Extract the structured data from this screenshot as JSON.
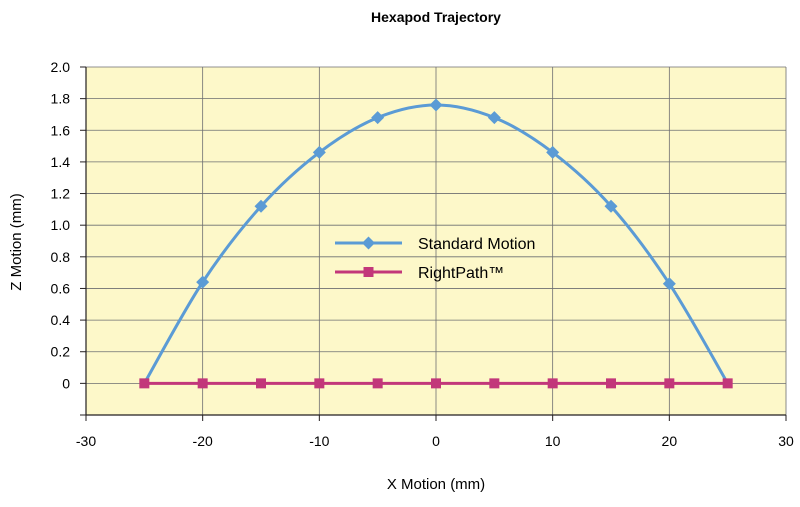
{
  "chart_data": {
    "type": "line",
    "title": "Hexapod Trajectory",
    "xlabel": "X Motion (mm)",
    "ylabel": "Z Motion (mm)",
    "xlim": [
      -30,
      30
    ],
    "ylim": [
      -0.2,
      2.0
    ],
    "xticks": [
      "-30",
      "-20",
      "-10",
      "0",
      "10",
      "20",
      "30"
    ],
    "yticks": [
      "0",
      "0.2",
      "0.4",
      "0.6",
      "0.8",
      "1.0",
      "1.2",
      "1.4",
      "1.6",
      "1.8",
      "2.0"
    ],
    "grid": true,
    "legend_position": "center",
    "series": [
      {
        "name": "Standard Motion",
        "color": "#5b9bd5",
        "marker": "diamond",
        "smooth": true,
        "curve_x": [
          -25,
          -20,
          -15,
          -10,
          -5,
          0,
          5,
          10,
          15,
          20,
          25
        ],
        "curve_y": [
          0,
          0.64,
          1.12,
          1.46,
          1.68,
          1.76,
          1.68,
          1.46,
          1.12,
          0.63,
          0
        ],
        "marker_x": [
          -20,
          -15,
          -10,
          -5,
          0,
          5,
          10,
          15,
          20
        ],
        "marker_y": [
          0.64,
          1.12,
          1.46,
          1.68,
          1.76,
          1.68,
          1.46,
          1.12,
          0.63
        ]
      },
      {
        "name": "RightPath™",
        "color": "#c2377a",
        "marker": "square",
        "smooth": false,
        "curve_x": [
          -25,
          -20,
          -15,
          -10,
          -5,
          0,
          5,
          10,
          15,
          20,
          25
        ],
        "curve_y": [
          0,
          0,
          0,
          0,
          0,
          0,
          0,
          0,
          0,
          0,
          0
        ],
        "marker_x": [
          -25,
          -20,
          -15,
          -10,
          -5,
          0,
          5,
          10,
          15,
          20,
          25
        ],
        "marker_y": [
          0,
          0,
          0,
          0,
          0,
          0,
          0,
          0,
          0,
          0,
          0
        ]
      }
    ],
    "colors": {
      "plot_background": "#fdf8c9",
      "grid": "#6d6e71",
      "axis": "#231f20"
    }
  }
}
